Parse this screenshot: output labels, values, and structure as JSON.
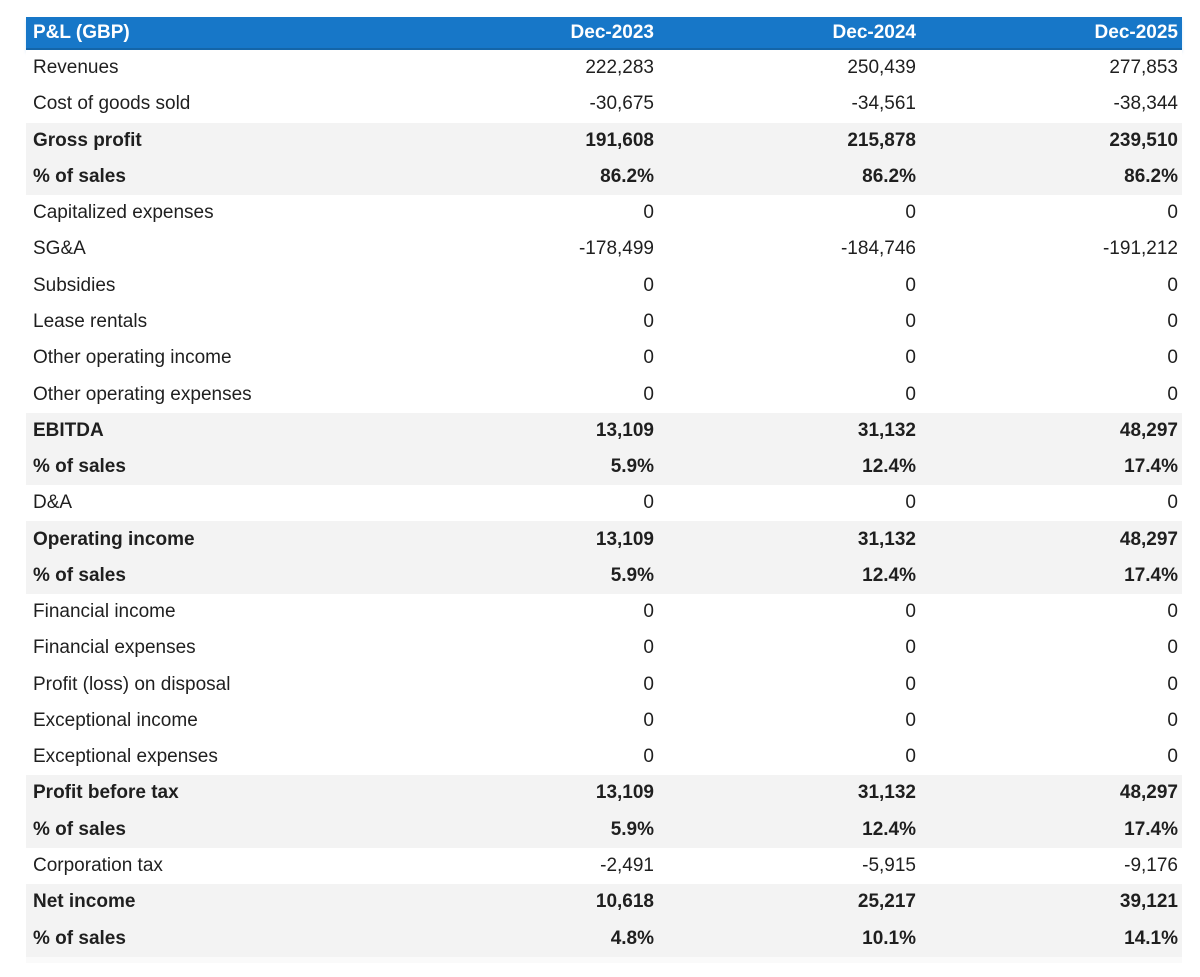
{
  "colors": {
    "header_bg": "#1777c8",
    "header_edge": "#1465a8",
    "header_text": "#ffffff",
    "emphasis_row_bg": "#f3f3f3",
    "normal_row_bg": "#ffffff",
    "text": "#1f1f1f"
  },
  "table": {
    "title": "P&L (GBP)",
    "columns": [
      "Dec-2023",
      "Dec-2024",
      "Dec-2025"
    ],
    "rows": [
      {
        "label": "Revenues",
        "values": [
          "222,283",
          "250,439",
          "277,853"
        ],
        "emphasis": false
      },
      {
        "label": "Cost of goods sold",
        "values": [
          "-30,675",
          "-34,561",
          "-38,344"
        ],
        "emphasis": false
      },
      {
        "label": "Gross profit",
        "values": [
          "191,608",
          "215,878",
          "239,510"
        ],
        "emphasis": true
      },
      {
        "label": "% of sales",
        "values": [
          "86.2%",
          "86.2%",
          "86.2%"
        ],
        "emphasis": true
      },
      {
        "label": "Capitalized expenses",
        "values": [
          "0",
          "0",
          "0"
        ],
        "emphasis": false
      },
      {
        "label": "SG&A",
        "values": [
          "-178,499",
          "-184,746",
          "-191,212"
        ],
        "emphasis": false
      },
      {
        "label": "Subsidies",
        "values": [
          "0",
          "0",
          "0"
        ],
        "emphasis": false
      },
      {
        "label": "Lease rentals",
        "values": [
          "0",
          "0",
          "0"
        ],
        "emphasis": false
      },
      {
        "label": "Other operating income",
        "values": [
          "0",
          "0",
          "0"
        ],
        "emphasis": false
      },
      {
        "label": "Other operating expenses",
        "values": [
          "0",
          "0",
          "0"
        ],
        "emphasis": false
      },
      {
        "label": "EBITDA",
        "values": [
          "13,109",
          "31,132",
          "48,297"
        ],
        "emphasis": true
      },
      {
        "label": "% of sales",
        "values": [
          "5.9%",
          "12.4%",
          "17.4%"
        ],
        "emphasis": true
      },
      {
        "label": "D&A",
        "values": [
          "0",
          "0",
          "0"
        ],
        "emphasis": false
      },
      {
        "label": "Operating income",
        "values": [
          "13,109",
          "31,132",
          "48,297"
        ],
        "emphasis": true
      },
      {
        "label": "% of sales",
        "values": [
          "5.9%",
          "12.4%",
          "17.4%"
        ],
        "emphasis": true
      },
      {
        "label": "Financial income",
        "values": [
          "0",
          "0",
          "0"
        ],
        "emphasis": false
      },
      {
        "label": "Financial expenses",
        "values": [
          "0",
          "0",
          "0"
        ],
        "emphasis": false
      },
      {
        "label": "Profit (loss) on disposal",
        "values": [
          "0",
          "0",
          "0"
        ],
        "emphasis": false
      },
      {
        "label": "Exceptional income",
        "values": [
          "0",
          "0",
          "0"
        ],
        "emphasis": false
      },
      {
        "label": "Exceptional expenses",
        "values": [
          "0",
          "0",
          "0"
        ],
        "emphasis": false
      },
      {
        "label": "Profit before tax",
        "values": [
          "13,109",
          "31,132",
          "48,297"
        ],
        "emphasis": true
      },
      {
        "label": "% of sales",
        "values": [
          "5.9%",
          "12.4%",
          "17.4%"
        ],
        "emphasis": true
      },
      {
        "label": "Corporation tax",
        "values": [
          "-2,491",
          "-5,915",
          "-9,176"
        ],
        "emphasis": false
      },
      {
        "label": "Net income",
        "values": [
          "10,618",
          "25,217",
          "39,121"
        ],
        "emphasis": true
      },
      {
        "label": "% of sales",
        "values": [
          "4.8%",
          "10.1%",
          "14.1%"
        ],
        "emphasis": true
      }
    ]
  },
  "chart_data": {
    "type": "table",
    "title": "P&L (GBP)",
    "columns": [
      "P&L (GBP)",
      "Dec-2023",
      "Dec-2024",
      "Dec-2025"
    ],
    "rows": [
      [
        "Revenues",
        222283,
        250439,
        277853
      ],
      [
        "Cost of goods sold",
        -30675,
        -34561,
        -38344
      ],
      [
        "Gross profit",
        191608,
        215878,
        239510
      ],
      [
        "Gross profit % of sales",
        "86.2%",
        "86.2%",
        "86.2%"
      ],
      [
        "Capitalized expenses",
        0,
        0,
        0
      ],
      [
        "SG&A",
        -178499,
        -184746,
        -191212
      ],
      [
        "Subsidies",
        0,
        0,
        0
      ],
      [
        "Lease rentals",
        0,
        0,
        0
      ],
      [
        "Other operating income",
        0,
        0,
        0
      ],
      [
        "Other operating expenses",
        0,
        0,
        0
      ],
      [
        "EBITDA",
        13109,
        31132,
        48297
      ],
      [
        "EBITDA % of sales",
        "5.9%",
        "12.4%",
        "17.4%"
      ],
      [
        "D&A",
        0,
        0,
        0
      ],
      [
        "Operating income",
        13109,
        31132,
        48297
      ],
      [
        "Operating income % of sales",
        "5.9%",
        "12.4%",
        "17.4%"
      ],
      [
        "Financial income",
        0,
        0,
        0
      ],
      [
        "Financial expenses",
        0,
        0,
        0
      ],
      [
        "Profit (loss) on disposal",
        0,
        0,
        0
      ],
      [
        "Exceptional income",
        0,
        0,
        0
      ],
      [
        "Exceptional expenses",
        0,
        0,
        0
      ],
      [
        "Profit before tax",
        13109,
        31132,
        48297
      ],
      [
        "Profit before tax % of sales",
        "5.9%",
        "12.4%",
        "17.4%"
      ],
      [
        "Corporation tax",
        -2491,
        -5915,
        -9176
      ],
      [
        "Net income",
        10618,
        25217,
        39121
      ],
      [
        "Net income % of sales",
        "4.8%",
        "10.1%",
        "14.1%"
      ]
    ]
  }
}
